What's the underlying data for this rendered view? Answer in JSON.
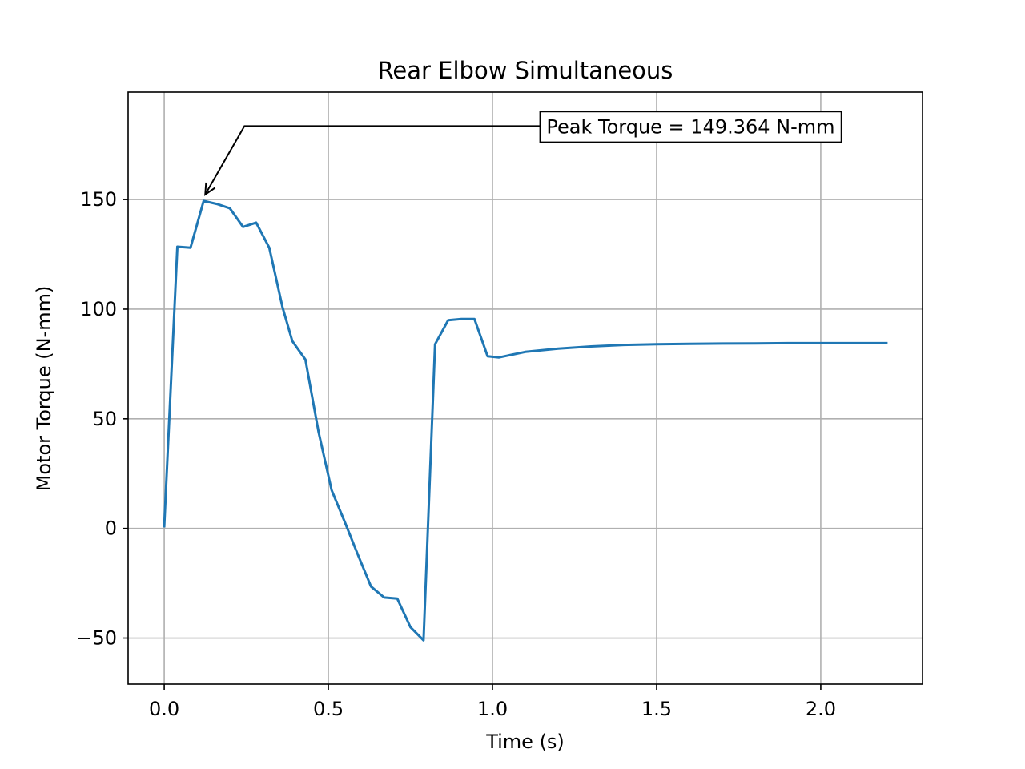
{
  "chart_data": {
    "type": "line",
    "title": "Rear Elbow Simultaneous",
    "xlabel": "Time (s)",
    "ylabel": "Motor Torque (N-mm)",
    "xlim": [
      -0.11,
      2.31
    ],
    "ylim": [
      -71,
      199
    ],
    "grid": true,
    "xticks": [
      0.0,
      0.5,
      1.0,
      1.5,
      2.0
    ],
    "xtick_labels": [
      "0.0",
      "0.5",
      "1.0",
      "1.5",
      "2.0"
    ],
    "yticks": [
      -50,
      0,
      50,
      100,
      150
    ],
    "ytick_labels": [
      "−50",
      "0",
      "50",
      "100",
      "150"
    ],
    "series": [
      {
        "color": "#1f77b4",
        "x": [
          0.0,
          0.04,
          0.08,
          0.12,
          0.16,
          0.2,
          0.24,
          0.28,
          0.32,
          0.36,
          0.39,
          0.43,
          0.47,
          0.51,
          0.55,
          0.59,
          0.63,
          0.67,
          0.71,
          0.75,
          0.79,
          0.825,
          0.865,
          0.905,
          0.945,
          0.985,
          1.02,
          1.1,
          1.2,
          1.3,
          1.4,
          1.5,
          1.6,
          1.7,
          1.8,
          1.9,
          2.0,
          2.1,
          2.2
        ],
        "y": [
          1,
          128.5,
          128,
          149.364,
          148,
          146,
          137.5,
          139.5,
          128,
          101,
          85.5,
          77,
          44,
          17.5,
          3,
          -12,
          -26.5,
          -31.5,
          -32,
          -45,
          -51,
          84,
          95,
          95.5,
          95.5,
          78.5,
          78,
          80.5,
          82,
          83,
          83.7,
          84,
          84.2,
          84.3,
          84.4,
          84.5,
          84.5,
          84.5,
          84.5
        ]
      }
    ],
    "annotation": {
      "text": "Peak Torque = 149.364 N-mm",
      "point": [
        0.12,
        149.364
      ],
      "text_anchor": [
        1.14,
        183.5
      ]
    }
  }
}
